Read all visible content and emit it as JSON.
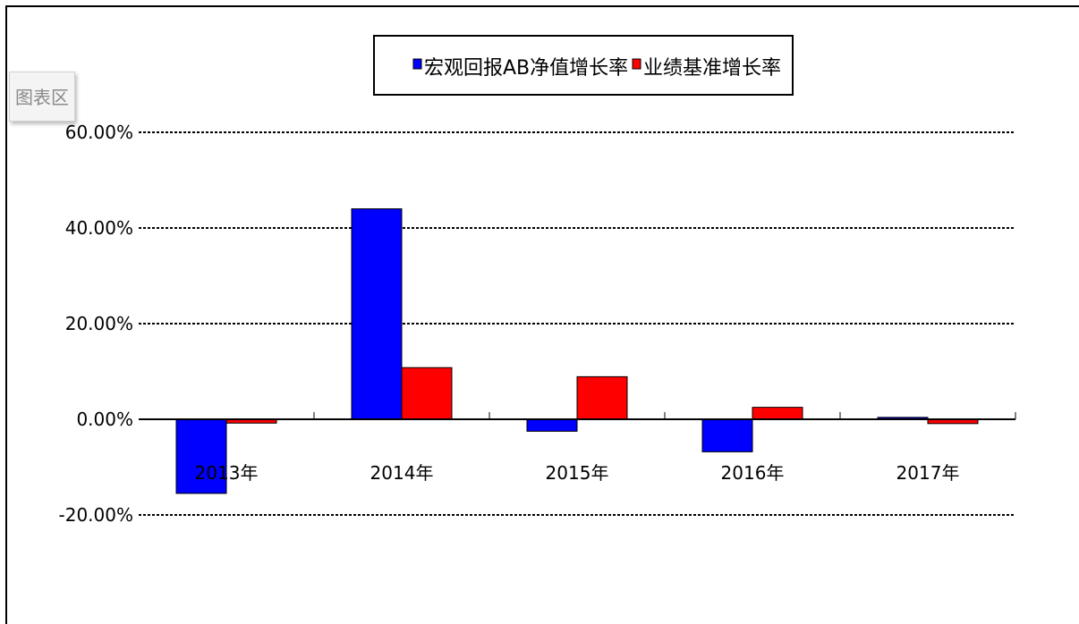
{
  "chart_area_label": "图表区",
  "chart_data": {
    "type": "bar",
    "title": "",
    "xlabel": "",
    "ylabel": "",
    "categories": [
      "2013年",
      "2014年",
      "2015年",
      "2016年",
      "2017年"
    ],
    "series": [
      {
        "name": "宏观回报AB净值增长率",
        "color": "#0000ff",
        "values": [
          -15.5,
          44.0,
          -2.5,
          -6.8,
          0.4
        ]
      },
      {
        "name": "业绩基准增长率",
        "color": "#ff0000",
        "values": [
          -0.8,
          10.8,
          8.9,
          2.5,
          -0.9
        ]
      }
    ],
    "ylim": [
      -20,
      60
    ],
    "yticks": [
      -20,
      0,
      20,
      40,
      60
    ],
    "ytick_labels": [
      "-20.00%",
      "0.00%",
      "20.00%",
      "40.00%",
      "60.00%"
    ],
    "grid": true,
    "legend_position": "top-center"
  }
}
